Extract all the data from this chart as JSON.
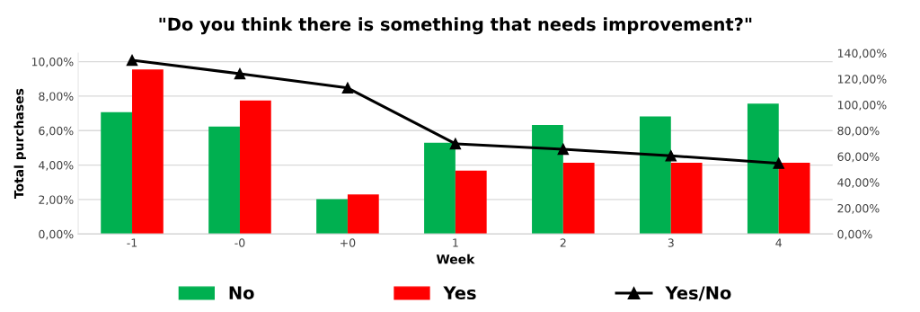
{
  "chart_data": {
    "type": "bar",
    "title": "\"Do you think there is something that needs improvement?\"",
    "xlabel": "Week",
    "ylabel": "Total purchases",
    "categories": [
      "-1",
      "-0",
      "+0",
      "1",
      "2",
      "3",
      "4"
    ],
    "series": [
      {
        "name": "No",
        "color": "#00b050",
        "values": [
          7.07,
          6.23,
          2.02,
          5.29,
          6.32,
          6.82,
          7.56
        ]
      },
      {
        "name": "Yes",
        "color": "#ff0000",
        "values": [
          9.55,
          7.75,
          2.3,
          3.68,
          4.14,
          4.14,
          4.14
        ]
      },
      {
        "name": "Yes/No",
        "color": "#000000",
        "type": "line",
        "axis": "y2",
        "marker": "triangle",
        "values": [
          134.4,
          124,
          113,
          69.8,
          65.6,
          60.5,
          54.7
        ]
      }
    ],
    "ylim": [
      0,
      10.5
    ],
    "yticks": [
      {
        "value": 0,
        "label": "0,00%"
      },
      {
        "value": 2,
        "label": "2,00%"
      },
      {
        "value": 4,
        "label": "4,00%"
      },
      {
        "value": 6,
        "label": "6,00%"
      },
      {
        "value": 8,
        "label": "8,00%"
      },
      {
        "value": 10,
        "label": "10,00%"
      }
    ],
    "y2lim": [
      0,
      140
    ],
    "y2ticks": [
      {
        "value": 0,
        "label": "0,00%"
      },
      {
        "value": 20,
        "label": "20,00%"
      },
      {
        "value": 40,
        "label": "40,00%"
      },
      {
        "value": 60,
        "label": "60,00%"
      },
      {
        "value": 80,
        "label": "80,00%"
      },
      {
        "value": 100,
        "label": "100,00%"
      },
      {
        "value": 120,
        "label": "120,00%"
      },
      {
        "value": 140,
        "label": "140,00%"
      }
    ],
    "grid": "y",
    "legend": "bottom"
  }
}
